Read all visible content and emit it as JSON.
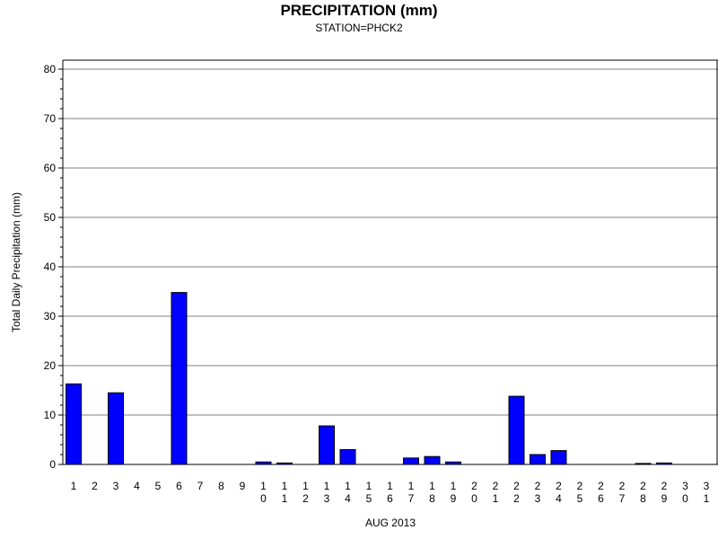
{
  "chart_data": {
    "type": "bar",
    "title": "PRECIPITATION (mm)",
    "subtitle": "STATION=PHCK2",
    "xlabel": "AUG 2013",
    "ylabel": "Total Daily Precipitation (mm)",
    "ylim": [
      0,
      80
    ],
    "yticks": [
      0,
      10,
      20,
      30,
      40,
      50,
      60,
      70,
      80
    ],
    "grid": true,
    "bar_color": "#0000ff",
    "categories": [
      "1",
      "2",
      "3",
      "4",
      "5",
      "6",
      "7",
      "8",
      "9",
      "10",
      "11",
      "12",
      "13",
      "14",
      "15",
      "16",
      "17",
      "18",
      "19",
      "20",
      "21",
      "22",
      "23",
      "24",
      "25",
      "26",
      "27",
      "28",
      "29",
      "30",
      "31"
    ],
    "values": [
      16.3,
      0,
      14.5,
      0,
      0,
      34.8,
      0,
      0,
      0,
      0.5,
      0.3,
      0,
      7.8,
      3.0,
      0,
      0,
      1.3,
      1.6,
      0.5,
      0,
      0,
      13.8,
      2.0,
      2.8,
      0,
      0,
      0,
      0.2,
      0.3,
      0,
      0
    ]
  }
}
